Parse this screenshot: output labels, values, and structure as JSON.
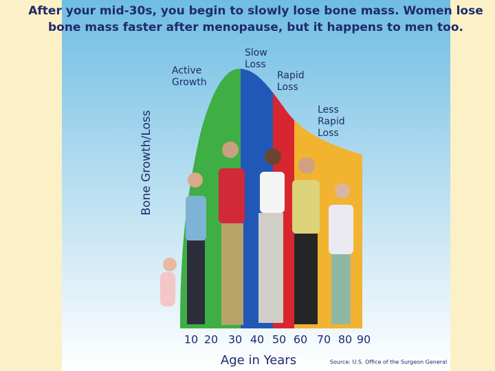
{
  "title": {
    "lines": [
      "After your mid-30s, you begin to slowly lose bone mass.  Women lose",
      "bone mass faster after menopause, but it happens to men too."
    ]
  },
  "phases": [
    {
      "lines": [
        "Active",
        "Growth"
      ]
    },
    {
      "lines": [
        "Slow",
        "Loss"
      ]
    },
    {
      "lines": [
        "Rapid",
        "Loss"
      ]
    },
    {
      "lines": [
        "Less",
        "Rapid",
        "Loss"
      ]
    }
  ],
  "y_axis_label": "Bone Growth/Loss",
  "x_axis_label": "Age in Years",
  "x_ticks": [
    "10",
    "20",
    "30",
    "40",
    "50",
    "60",
    "70",
    "80",
    "90"
  ],
  "source": "Source: U.S. Office of the Surgeon General"
}
